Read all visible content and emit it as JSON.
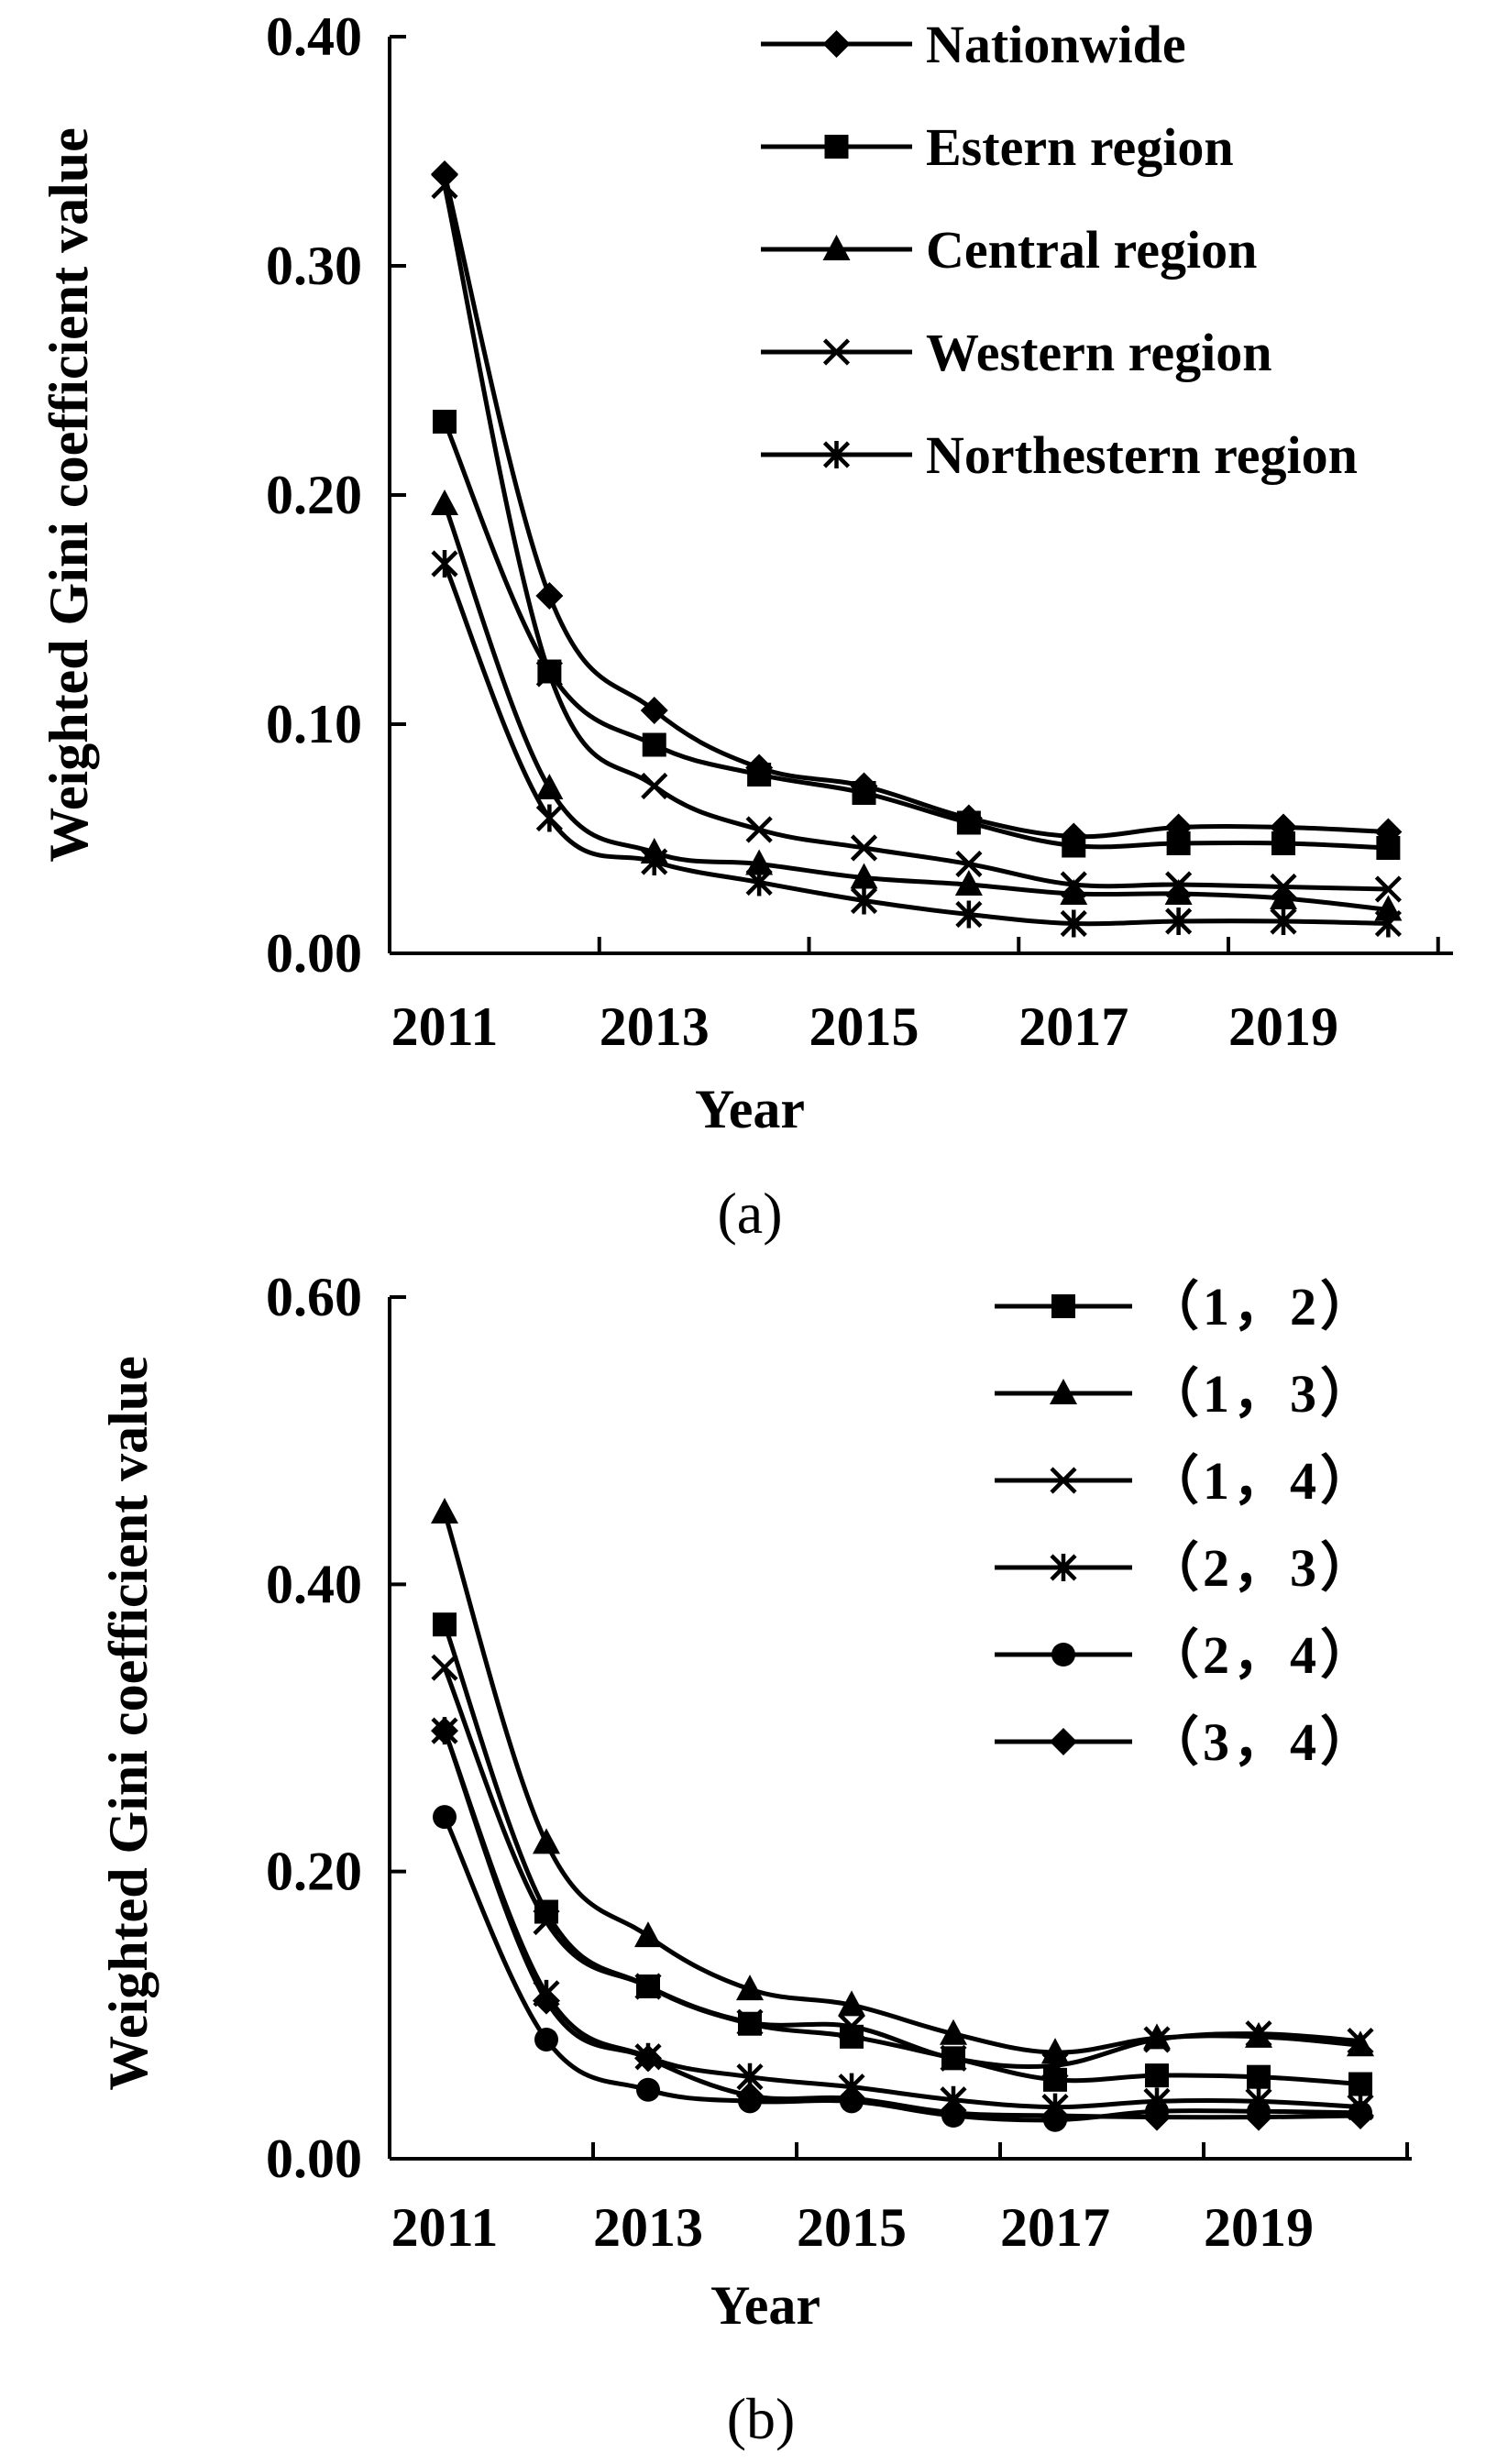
{
  "panel_labels": [
    "(a)",
    "(b)"
  ],
  "chart_data": [
    {
      "type": "line",
      "title": "",
      "xlabel": "Year",
      "ylabel": "Weighted Gini coefficient value",
      "x": [
        2011,
        2012,
        2013,
        2014,
        2015,
        2016,
        2017,
        2018,
        2019,
        2020
      ],
      "xticks": [
        "2011",
        "2013",
        "2015",
        "2017",
        "2019"
      ],
      "yticks": [
        "0.00",
        "0.10",
        "0.20",
        "0.30",
        "0.40"
      ],
      "ylim": [
        0,
        0.4
      ],
      "grid": false,
      "legend_position": "top-right",
      "series": [
        {
          "name": "Nationwide",
          "marker": "diamond",
          "values": [
            0.34,
            0.156,
            0.106,
            0.081,
            0.073,
            0.059,
            0.051,
            0.055,
            0.055,
            0.053
          ]
        },
        {
          "name": "Estern region",
          "marker": "square",
          "values": [
            0.232,
            0.123,
            0.091,
            0.078,
            0.07,
            0.057,
            0.047,
            0.048,
            0.048,
            0.046
          ]
        },
        {
          "name": "Central region",
          "marker": "triangle",
          "values": [
            0.196,
            0.072,
            0.044,
            0.039,
            0.033,
            0.03,
            0.026,
            0.026,
            0.024,
            0.019
          ]
        },
        {
          "name": "Western region",
          "marker": "x",
          "values": [
            0.335,
            0.122,
            0.073,
            0.054,
            0.046,
            0.039,
            0.03,
            0.03,
            0.029,
            0.028
          ]
        },
        {
          "name": "Northestern region",
          "marker": "asterisk",
          "values": [
            0.17,
            0.059,
            0.04,
            0.031,
            0.023,
            0.017,
            0.013,
            0.014,
            0.014,
            0.013
          ]
        }
      ]
    },
    {
      "type": "line",
      "title": "",
      "xlabel": "Year",
      "ylabel": "Weighted Gini coefficient value",
      "x": [
        2011,
        2012,
        2013,
        2014,
        2015,
        2016,
        2017,
        2018,
        2019,
        2020
      ],
      "xticks": [
        "2011",
        "2013",
        "2015",
        "2017",
        "2019"
      ],
      "yticks": [
        "0.00",
        "0.20",
        "0.40",
        "0.60"
      ],
      "ylim": [
        0,
        0.6
      ],
      "grid": false,
      "legend_position": "top-right",
      "series": [
        {
          "name": "（1，2）",
          "marker": "square",
          "values": [
            0.372,
            0.172,
            0.12,
            0.094,
            0.085,
            0.07,
            0.055,
            0.058,
            0.057,
            0.052
          ]
        },
        {
          "name": "（1，3）",
          "marker": "triangle",
          "values": [
            0.45,
            0.22,
            0.155,
            0.118,
            0.107,
            0.087,
            0.074,
            0.084,
            0.085,
            0.079
          ]
        },
        {
          "name": "（1，4）",
          "marker": "x",
          "values": [
            0.342,
            0.165,
            0.12,
            0.095,
            0.092,
            0.07,
            0.065,
            0.083,
            0.087,
            0.082
          ]
        },
        {
          "name": "（2，3）",
          "marker": "asterisk",
          "values": [
            0.298,
            0.115,
            0.071,
            0.057,
            0.05,
            0.041,
            0.036,
            0.04,
            0.04,
            0.036
          ]
        },
        {
          "name": "（2，4）",
          "marker": "circle",
          "values": [
            0.238,
            0.083,
            0.048,
            0.04,
            0.04,
            0.03,
            0.027,
            0.033,
            0.033,
            0.032
          ]
        },
        {
          "name": "（3，4）",
          "marker": "diamond",
          "values": [
            0.298,
            0.11,
            0.07,
            0.044,
            0.042,
            0.032,
            0.03,
            0.029,
            0.029,
            0.03
          ]
        }
      ]
    }
  ]
}
